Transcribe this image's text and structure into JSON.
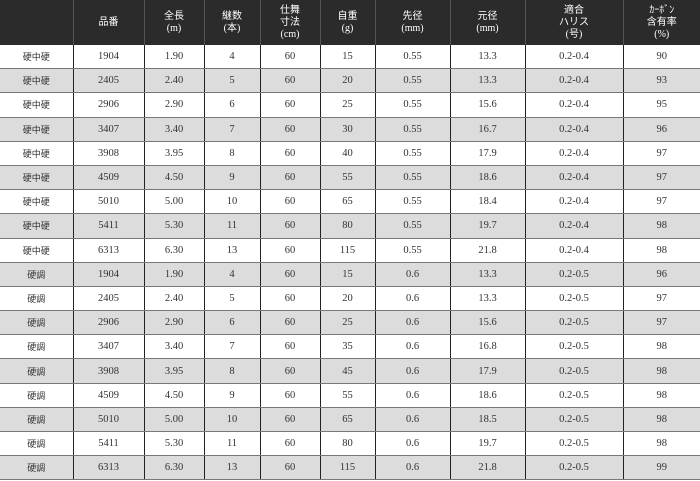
{
  "colors": {
    "header_bg": "#2b2b2b",
    "header_text": "#ffffff",
    "row_alt_bg": "#dcdcdc",
    "row_bg": "#ffffff"
  },
  "headers": [
    "",
    "品番",
    "全長\n(m)",
    "継数\n(本)",
    "仕舞\n寸法\n(cm)",
    "自重\n(g)",
    "先径\n(mm)",
    "元径\n(mm)",
    "適合\nハリス\n(号)",
    "ｶｰﾎﾞﾝ\n含有率\n(%)"
  ],
  "rows": [
    [
      "硬中硬",
      "1904",
      "1.90",
      "4",
      "60",
      "15",
      "0.55",
      "13.3",
      "0.2-0.4",
      "90"
    ],
    [
      "硬中硬",
      "2405",
      "2.40",
      "5",
      "60",
      "20",
      "0.55",
      "13.3",
      "0.2-0.4",
      "93"
    ],
    [
      "硬中硬",
      "2906",
      "2.90",
      "6",
      "60",
      "25",
      "0.55",
      "15.6",
      "0.2-0.4",
      "95"
    ],
    [
      "硬中硬",
      "3407",
      "3.40",
      "7",
      "60",
      "30",
      "0.55",
      "16.7",
      "0.2-0.4",
      "96"
    ],
    [
      "硬中硬",
      "3908",
      "3.95",
      "8",
      "60",
      "40",
      "0.55",
      "17.9",
      "0.2-0.4",
      "97"
    ],
    [
      "硬中硬",
      "4509",
      "4.50",
      "9",
      "60",
      "55",
      "0.55",
      "18.6",
      "0.2-0.4",
      "97"
    ],
    [
      "硬中硬",
      "5010",
      "5.00",
      "10",
      "60",
      "65",
      "0.55",
      "18.4",
      "0.2-0.4",
      "97"
    ],
    [
      "硬中硬",
      "5411",
      "5.30",
      "11",
      "60",
      "80",
      "0.55",
      "19.7",
      "0.2-0.4",
      "98"
    ],
    [
      "硬中硬",
      "6313",
      "6.30",
      "13",
      "60",
      "115",
      "0.55",
      "21.8",
      "0.2-0.4",
      "98"
    ],
    [
      "硬調",
      "1904",
      "1.90",
      "4",
      "60",
      "15",
      "0.6",
      "13.3",
      "0.2-0.5",
      "96"
    ],
    [
      "硬調",
      "2405",
      "2.40",
      "5",
      "60",
      "20",
      "0.6",
      "13.3",
      "0.2-0.5",
      "97"
    ],
    [
      "硬調",
      "2906",
      "2.90",
      "6",
      "60",
      "25",
      "0.6",
      "15.6",
      "0.2-0.5",
      "97"
    ],
    [
      "硬調",
      "3407",
      "3.40",
      "7",
      "60",
      "35",
      "0.6",
      "16.8",
      "0.2-0.5",
      "98"
    ],
    [
      "硬調",
      "3908",
      "3.95",
      "8",
      "60",
      "45",
      "0.6",
      "17.9",
      "0.2-0.5",
      "98"
    ],
    [
      "硬調",
      "4509",
      "4.50",
      "9",
      "60",
      "55",
      "0.6",
      "18.6",
      "0.2-0.5",
      "98"
    ],
    [
      "硬調",
      "5010",
      "5.00",
      "10",
      "60",
      "65",
      "0.6",
      "18.5",
      "0.2-0.5",
      "98"
    ],
    [
      "硬調",
      "5411",
      "5.30",
      "11",
      "60",
      "80",
      "0.6",
      "19.7",
      "0.2-0.5",
      "98"
    ],
    [
      "硬調",
      "6313",
      "6.30",
      "13",
      "60",
      "115",
      "0.6",
      "21.8",
      "0.2-0.5",
      "99"
    ]
  ]
}
